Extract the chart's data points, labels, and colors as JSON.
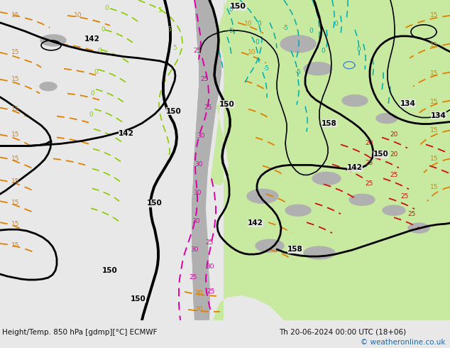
{
  "title_left": "Height/Temp. 850 hPa [gdmp][°C] ECMWF",
  "title_right": "Th 20-06-2024 00:00 UTC (18+06)",
  "copyright": "© weatheronline.co.uk",
  "bg_light": "#e8e8e8",
  "green_fill": "#c8eaa0",
  "green_fill2": "#b8e090",
  "gray_terrain": "#b0b0b0",
  "fig_width": 6.34,
  "fig_height": 4.9,
  "dpi": 100,
  "bottom_color": "#f0f0f0",
  "copyright_color": "#1a6ab5",
  "orange": "#e08000",
  "red": "#cc1010",
  "magenta": "#dd00aa",
  "lime": "#88cc00",
  "teal": "#00aaaa",
  "black_lw": 2.0,
  "thin_lw": 1.2
}
